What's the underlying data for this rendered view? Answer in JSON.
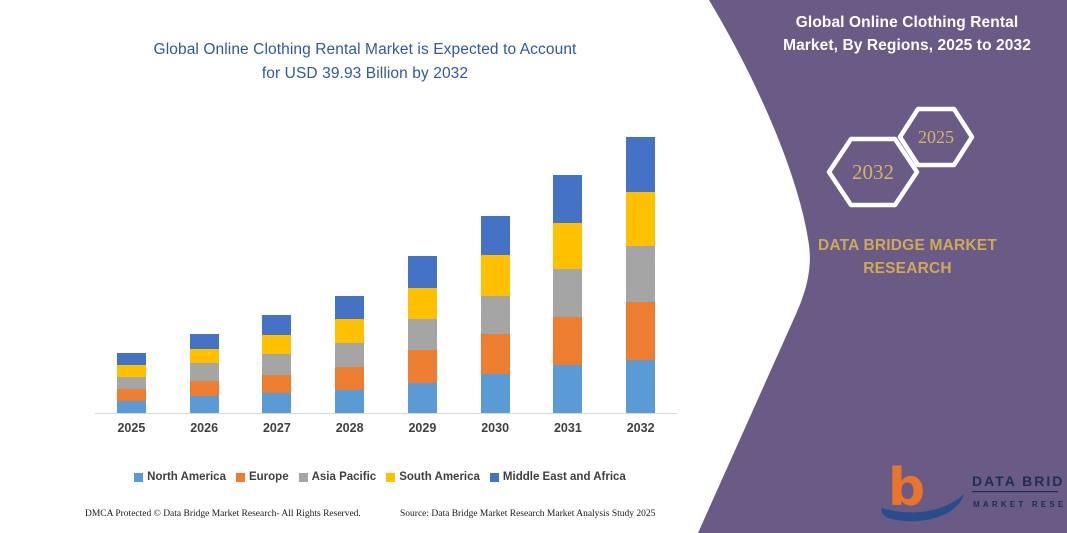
{
  "chart": {
    "title": "Global Online Clothing Rental Market is Expected to Account\nfor USD 39.93 Billion by 2032",
    "title_color": "#2E5A96",
    "axis_line_color": "#D9D9D9"
  },
  "chart_data": {
    "type": "bar",
    "stacked": true,
    "title": "Global Online Clothing Rental Market is Expected to Account for USD 39.93 Billion by 2032",
    "units": "USD Billion",
    "categories": [
      "2025",
      "2026",
      "2027",
      "2028",
      "2029",
      "2030",
      "2031",
      "2032"
    ],
    "series": [
      {
        "name": "North America",
        "color": "#5B9BD5",
        "values": [
          1.7,
          2.5,
          2.9,
          3.4,
          4.4,
          5.6,
          6.9,
          7.6
        ]
      },
      {
        "name": "Europe",
        "color": "#ED7D31",
        "values": [
          1.7,
          2.1,
          2.6,
          3.4,
          4.8,
          5.8,
          6.9,
          8.4
        ]
      },
      {
        "name": "Asia Pacific",
        "color": "#A5A5A5",
        "values": [
          1.7,
          2.6,
          3.0,
          3.5,
          4.5,
          5.5,
          6.9,
          8.1
        ]
      },
      {
        "name": "South America",
        "color": "#FFC000",
        "values": [
          1.7,
          2.0,
          2.8,
          3.5,
          4.5,
          6.0,
          6.7,
          7.8
        ]
      },
      {
        "name": "Middle East and Africa",
        "color": "#4472C4",
        "values": [
          1.8,
          2.1,
          2.9,
          3.4,
          4.7,
          5.6,
          6.9,
          8.0
        ]
      }
    ],
    "totals": [
      8.6,
      11.3,
      14.2,
      17.2,
      22.9,
      28.5,
      34.3,
      39.93
    ],
    "ylim": [
      0,
      42
    ],
    "gridlines": false,
    "legend_position": "bottom",
    "xlabel": "",
    "ylabel": ""
  },
  "sidebar": {
    "background": "#6A5B86",
    "accent_gold": "#D0A958",
    "title": "Global Online Clothing Rental\nMarket, By Regions, 2025 to 2032",
    "hexagon_back_label": "2025",
    "hexagon_front_label": "2032",
    "brand": "DATA BRIDGE MARKET RESEARCH",
    "logo_name": "DATA BRIDGE",
    "logo_subname": "MARKET RESEARCH"
  },
  "footer": {
    "left": "DMCA Protected © Data Bridge Market Research-  All Rights Reserved.",
    "right": "Source: Data Bridge Market Research  Market Analysis Study 2025"
  }
}
